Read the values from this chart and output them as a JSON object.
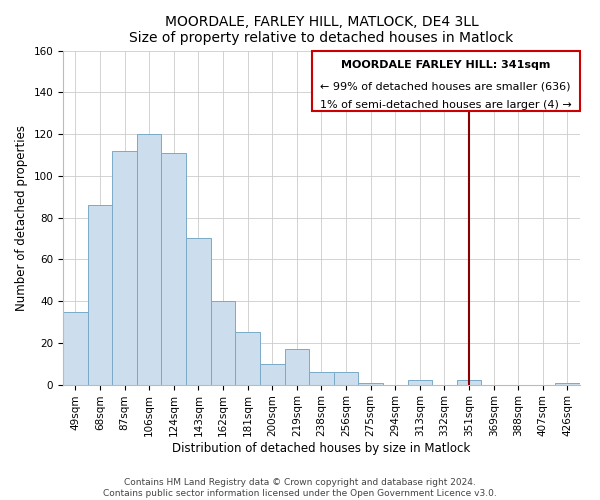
{
  "title": "MOORDALE, FARLEY HILL, MATLOCK, DE4 3LL",
  "subtitle": "Size of property relative to detached houses in Matlock",
  "xlabel": "Distribution of detached houses by size in Matlock",
  "ylabel": "Number of detached properties",
  "bin_labels": [
    "49sqm",
    "68sqm",
    "87sqm",
    "106sqm",
    "124sqm",
    "143sqm",
    "162sqm",
    "181sqm",
    "200sqm",
    "219sqm",
    "238sqm",
    "256sqm",
    "275sqm",
    "294sqm",
    "313sqm",
    "332sqm",
    "351sqm",
    "369sqm",
    "388sqm",
    "407sqm",
    "426sqm"
  ],
  "bar_heights": [
    35,
    86,
    112,
    120,
    111,
    70,
    40,
    25,
    10,
    17,
    6,
    6,
    1,
    0,
    2,
    0,
    2,
    0,
    0,
    0,
    1
  ],
  "bar_color": "#ccdded",
  "bar_edge_color": "#7aaac8",
  "vline_x_index": 16,
  "vline_color": "#8b0000",
  "annotation_line1": "MOORDALE FARLEY HILL: 341sqm",
  "annotation_line2": "← 99% of detached houses are smaller (636)",
  "annotation_line3": "1% of semi-detached houses are larger (4) →",
  "box_color": "#cc0000",
  "ylim": [
    0,
    160
  ],
  "yticks": [
    0,
    20,
    40,
    60,
    80,
    100,
    120,
    140,
    160
  ],
  "footer_line1": "Contains HM Land Registry data © Crown copyright and database right 2024.",
  "footer_line2": "Contains public sector information licensed under the Open Government Licence v3.0.",
  "title_fontsize": 10,
  "subtitle_fontsize": 9,
  "axis_fontsize": 8.5,
  "tick_fontsize": 7.5,
  "annot_fontsize": 8,
  "footer_fontsize": 6.5,
  "bg_color": "#ffffff"
}
